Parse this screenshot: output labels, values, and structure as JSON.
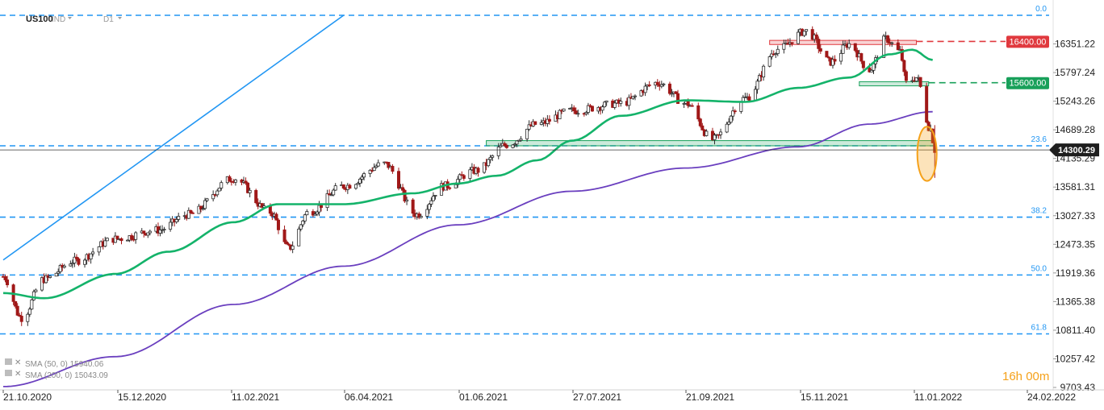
{
  "header": {
    "symbol": "US100",
    "instrument_type": "IND",
    "timeframe": "D1"
  },
  "legend": {
    "sma50": "SMA (50, 0) 15940.06",
    "sma200": "SMA (200, 0) 15043.09"
  },
  "timer": "16h 00m",
  "colors": {
    "up_candle": "#2d2d2d",
    "down_candle": "#a01818",
    "sma50": "#14b36a",
    "sma200": "#6a3fbf",
    "fib": "#2196f3",
    "support": "#18a05a",
    "resistance": "#e0393e",
    "highlight": "#f5a11a"
  },
  "chart_data": {
    "type": "candlestick",
    "symbol": "US100",
    "timeframe": "D1",
    "x_labels": [
      "21.10.2020",
      "15.12.2020",
      "11.02.2021",
      "06.04.2021",
      "01.06.2021",
      "27.07.2021",
      "21.09.2021",
      "15.11.2021",
      "11.01.2022",
      "24.02.2022"
    ],
    "y_ticks": [
      "16351.22",
      "15797.24",
      "15243.26",
      "14689.28",
      "14135.29",
      "13581.31",
      "13027.33",
      "12473.35",
      "11919.36",
      "11365.38",
      "10811.40",
      "10257.42",
      "9703.43"
    ],
    "y_range": [
      9703.43,
      16905.2
    ],
    "current_price": "14300.29",
    "fibonacci": [
      {
        "label": "0.0",
        "value": 16905.2
      },
      {
        "label": "23.6",
        "value": 14380
      },
      {
        "label": "38.2",
        "value": 13000
      },
      {
        "label": "50.0",
        "value": 11880
      },
      {
        "label": "61.8",
        "value": 10740
      }
    ],
    "levels": [
      {
        "label": "16400.00",
        "value": 16400,
        "kind": "resistance"
      },
      {
        "label": "15600.00",
        "value": 15600,
        "kind": "support"
      }
    ],
    "zones": [
      {
        "kind": "resistance",
        "from_date": "2021-11-01",
        "to_date": "2022-01-12",
        "low": 16340,
        "high": 16420
      },
      {
        "kind": "support",
        "from_date": "2021-12-15",
        "to_date": "2022-01-18",
        "low": 15540,
        "high": 15620
      },
      {
        "kind": "support",
        "from_date": "2021-06-15",
        "to_date": "2022-01-21",
        "low": 14380,
        "high": 14480
      }
    ],
    "trendline": {
      "from": {
        "date": "2020-10-21",
        "value": 12170
      },
      "to": {
        "date": "2021-04-06",
        "value": 16905
      }
    },
    "highlight": {
      "date": "2022-01-18",
      "low": 13700,
      "high": 14750
    },
    "sma50": [
      {
        "date": "2020-10-21",
        "value": 11530
      },
      {
        "date": "2020-11-10",
        "value": 11430
      },
      {
        "date": "2020-12-15",
        "value": 11900
      },
      {
        "date": "2021-01-10",
        "value": 12330
      },
      {
        "date": "2021-02-11",
        "value": 12900
      },
      {
        "date": "2021-03-05",
        "value": 13250
      },
      {
        "date": "2021-04-06",
        "value": 13250
      },
      {
        "date": "2021-05-10",
        "value": 13460
      },
      {
        "date": "2021-06-01",
        "value": 13650
      },
      {
        "date": "2021-06-20",
        "value": 13800
      },
      {
        "date": "2021-07-10",
        "value": 14100
      },
      {
        "date": "2021-07-27",
        "value": 14480
      },
      {
        "date": "2021-08-20",
        "value": 14960
      },
      {
        "date": "2021-09-21",
        "value": 15260
      },
      {
        "date": "2021-10-20",
        "value": 15230
      },
      {
        "date": "2021-11-15",
        "value": 15500
      },
      {
        "date": "2021-12-10",
        "value": 15700
      },
      {
        "date": "2021-12-30",
        "value": 16150
      },
      {
        "date": "2022-01-10",
        "value": 16240
      },
      {
        "date": "2022-01-20",
        "value": 16040
      }
    ],
    "sma200": [
      {
        "date": "2020-10-21",
        "value": 9720
      },
      {
        "date": "2020-12-15",
        "value": 10300
      },
      {
        "date": "2021-02-11",
        "value": 11310
      },
      {
        "date": "2021-04-06",
        "value": 12050
      },
      {
        "date": "2021-06-01",
        "value": 12850
      },
      {
        "date": "2021-07-27",
        "value": 13500
      },
      {
        "date": "2021-09-21",
        "value": 13950
      },
      {
        "date": "2021-11-15",
        "value": 14360
      },
      {
        "date": "2021-12-20",
        "value": 14800
      },
      {
        "date": "2022-01-20",
        "value": 15040
      }
    ],
    "price_path": [
      {
        "date": "2020-10-21",
        "value": 11850
      },
      {
        "date": "2020-10-30",
        "value": 11050
      },
      {
        "date": "2020-11-10",
        "value": 11800
      },
      {
        "date": "2020-11-25",
        "value": 12150
      },
      {
        "date": "2020-12-15",
        "value": 12580
      },
      {
        "date": "2021-01-05",
        "value": 12750
      },
      {
        "date": "2021-01-20",
        "value": 13050
      },
      {
        "date": "2021-02-11",
        "value": 13750
      },
      {
        "date": "2021-03-01",
        "value": 13100
      },
      {
        "date": "2021-03-10",
        "value": 12400
      },
      {
        "date": "2021-03-20",
        "value": 13100
      },
      {
        "date": "2021-04-06",
        "value": 13600
      },
      {
        "date": "2021-04-26",
        "value": 14030
      },
      {
        "date": "2021-05-12",
        "value": 13050
      },
      {
        "date": "2021-05-25",
        "value": 13600
      },
      {
        "date": "2021-06-10",
        "value": 13900
      },
      {
        "date": "2021-06-25",
        "value": 14400
      },
      {
        "date": "2021-07-10",
        "value": 14800
      },
      {
        "date": "2021-07-27",
        "value": 15060
      },
      {
        "date": "2021-08-20",
        "value": 15200
      },
      {
        "date": "2021-09-07",
        "value": 15600
      },
      {
        "date": "2021-09-21",
        "value": 15200
      },
      {
        "date": "2021-10-04",
        "value": 14500
      },
      {
        "date": "2021-10-20",
        "value": 15300
      },
      {
        "date": "2021-11-05",
        "value": 16250
      },
      {
        "date": "2021-11-19",
        "value": 16600
      },
      {
        "date": "2021-12-01",
        "value": 16000
      },
      {
        "date": "2021-12-10",
        "value": 16350
      },
      {
        "date": "2021-12-20",
        "value": 15850
      },
      {
        "date": "2021-12-28",
        "value": 16450
      },
      {
        "date": "2022-01-04",
        "value": 16200
      },
      {
        "date": "2022-01-07",
        "value": 15600
      },
      {
        "date": "2022-01-12",
        "value": 15700
      },
      {
        "date": "2022-01-19",
        "value": 14700
      },
      {
        "date": "2022-01-21",
        "value": 14300
      }
    ]
  }
}
